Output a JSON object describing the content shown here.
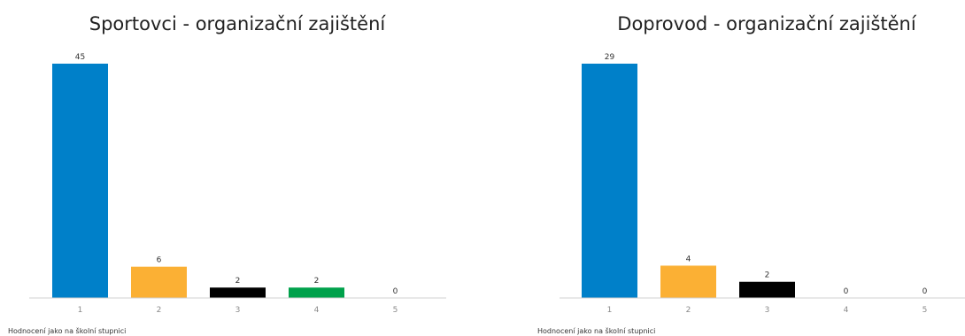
{
  "chart_data": [
    {
      "type": "bar",
      "title": "Sportovci - organizační zajištění",
      "categories": [
        "1",
        "2",
        "3",
        "4",
        "5"
      ],
      "values": [
        45,
        6,
        2,
        2,
        0
      ],
      "value_labels": [
        "45",
        "6",
        "2",
        "2",
        "0"
      ],
      "colors": [
        "#0080c9",
        "#fbb034",
        "#000000",
        "#00a14b",
        "#cccccc"
      ],
      "note": "Hodnocení jako na školní stupnici",
      "ylim": [
        0,
        45
      ],
      "grid": false,
      "legend": "none"
    },
    {
      "type": "bar",
      "title": "Doprovod - organizační zajištění",
      "categories": [
        "1",
        "2",
        "3",
        "4",
        "5"
      ],
      "values": [
        29,
        4,
        2,
        0,
        0
      ],
      "value_labels": [
        "29",
        "4",
        "2",
        "0",
        "0"
      ],
      "colors": [
        "#0080c9",
        "#fbb034",
        "#000000",
        "#00a14b",
        "#cccccc"
      ],
      "note": "Hodnocení jako na školní stupnici",
      "ylim": [
        0,
        29
      ],
      "grid": false,
      "legend": "none"
    }
  ]
}
